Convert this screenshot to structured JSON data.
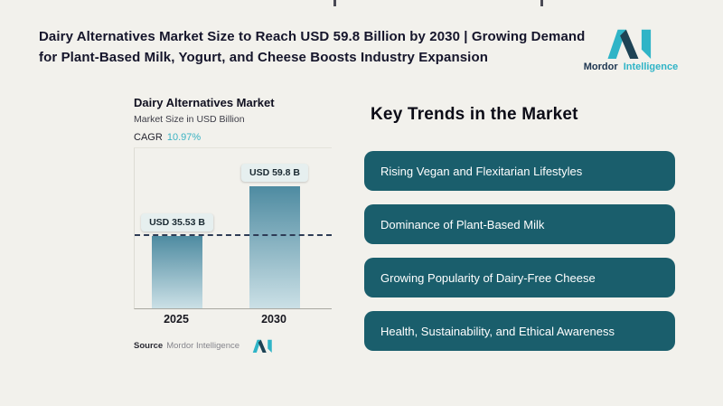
{
  "page": {
    "background": "#f2f1ec"
  },
  "header": {
    "title_line1": "Dairy Alternatives Market Size to Reach USD 59.8 Billion by 2030 | Growing Demand",
    "title_line2": "for Plant-Based Milk, Yogurt, and Cheese Boosts Industry Expansion"
  },
  "brand": {
    "name_dark": "Mordor",
    "name_teal": "Intelligence",
    "mark_teal": "#2fb4c7",
    "mark_navy": "#1d4355"
  },
  "chart": {
    "title": "Dairy Alternatives Market",
    "subtitle": "Market Size in USD Billion",
    "cagr_label": "CAGR",
    "cagr_value": "10.97%",
    "cagr_value_color": "#3bb3c3",
    "source_label": "Source",
    "source_value": "Mordor Intelligence"
  },
  "chart_data": {
    "type": "bar",
    "categories": [
      "2025",
      "2030"
    ],
    "values": [
      35.53,
      59.8
    ],
    "value_labels": [
      "USD 35.53 B",
      "USD 59.8 B"
    ],
    "title": "Dairy Alternatives Market",
    "ylabel": "Market Size in USD Billion",
    "cagr": "10.97%",
    "ylim": [
      0,
      70
    ],
    "reference_line_value": 35.53,
    "reference_line_style": "dashed",
    "bar_top_color": "#4e8ba1",
    "bar_bottom_color": "#cbe0e6",
    "legend": "none",
    "grid": "off"
  },
  "trends": {
    "heading": "Key Trends in the Market",
    "pill_color": "#1a5e6c",
    "items": [
      "Rising Vegan and Flexitarian Lifestyles",
      "Dominance of Plant-Based Milk",
      "Growing Popularity of Dairy-Free Cheese",
      "Health, Sustainability, and Ethical Awareness"
    ]
  }
}
